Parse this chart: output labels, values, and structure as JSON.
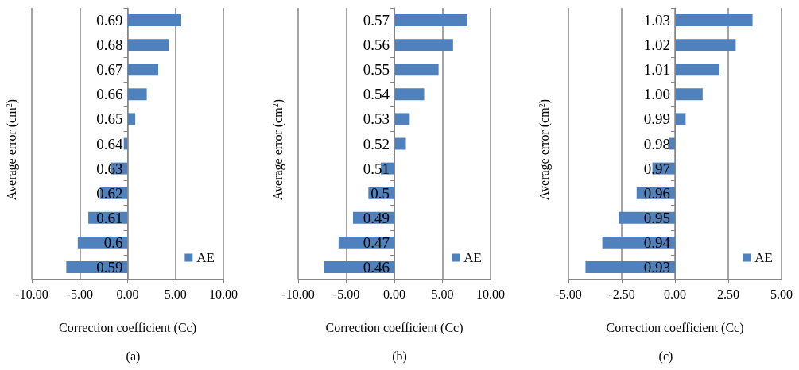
{
  "chart_data": [
    {
      "type": "bar",
      "orientation": "horizontal",
      "xlabel": "Correction coefficient (Cc)",
      "ylabel": "Average error (cm$^{2}$)",
      "annotations": [
        "(a)"
      ],
      "categories": [
        "0.69",
        "0.68",
        "0.67",
        "0.66",
        "0.65",
        "0.64",
        "0.63",
        "0.62",
        "0.61",
        "0.6",
        "0.59"
      ],
      "series": [
        {
          "name": "AE",
          "color": "#4f81bd",
          "values": [
            5.6,
            4.3,
            3.2,
            2.0,
            0.8,
            -0.4,
            -1.7,
            -2.9,
            -4.1,
            -5.2,
            -6.4
          ]
        }
      ],
      "xlim": [
        -10,
        10
      ],
      "xticks": [
        {
          "value": -10,
          "label": "-10.00"
        },
        {
          "value": -5,
          "label": "-5.00"
        },
        {
          "value": 0,
          "label": "0.00"
        },
        {
          "value": 5,
          "label": "5.00"
        },
        {
          "value": 10,
          "label": "10.00"
        }
      ],
      "grid": "x",
      "legend": "bottom right"
    },
    {
      "type": "bar",
      "orientation": "horizontal",
      "xlabel": "Correction coefficient (Cc)",
      "ylabel": "Average error (cm$^{2}$)",
      "annotations": [
        "(b)"
      ],
      "categories": [
        "0.57",
        "0.56",
        "0.55",
        "0.54",
        "0.53",
        "0.52",
        "0.51",
        "0.5",
        "0.49",
        "0.47",
        "0.46"
      ],
      "series": [
        {
          "name": "AE",
          "color": "#4f81bd",
          "values": [
            7.6,
            6.1,
            4.6,
            3.1,
            1.6,
            1.2,
            -1.4,
            -2.7,
            -4.3,
            -5.8,
            -7.3
          ]
        }
      ],
      "xlim": [
        -10,
        10
      ],
      "xticks": [
        {
          "value": -10,
          "label": "-10.00"
        },
        {
          "value": -5,
          "label": "-5.00"
        },
        {
          "value": 0,
          "label": "0.00"
        },
        {
          "value": 5,
          "label": "5.00"
        },
        {
          "value": 10,
          "label": "10.00"
        }
      ],
      "grid": "x",
      "legend": "bottom right"
    },
    {
      "type": "bar",
      "orientation": "horizontal",
      "xlabel": "Correction coefficient (Cc)",
      "ylabel": "Average error (cm$^{2}$)",
      "annotations": [
        "(c)"
      ],
      "categories": [
        "1.03",
        "1.02",
        "1.01",
        "1.00",
        "0.99",
        "0.98",
        "0.97",
        "0.96",
        "0.95",
        "0.94",
        "0.93"
      ],
      "series": [
        {
          "name": "AE",
          "color": "#4f81bd",
          "values": [
            3.64,
            2.85,
            2.09,
            1.3,
            0.5,
            -0.28,
            -1.06,
            -1.8,
            -2.63,
            -3.41,
            -4.2
          ]
        }
      ],
      "xlim": [
        -5,
        5
      ],
      "xticks": [
        {
          "value": -5,
          "label": "-5.00"
        },
        {
          "value": -2.5,
          "label": "-2.50"
        },
        {
          "value": 0,
          "label": "0.00"
        },
        {
          "value": 2.5,
          "label": "2.50"
        },
        {
          "value": 5,
          "label": "5.00"
        }
      ],
      "grid": "x",
      "legend": "bottom right"
    }
  ]
}
